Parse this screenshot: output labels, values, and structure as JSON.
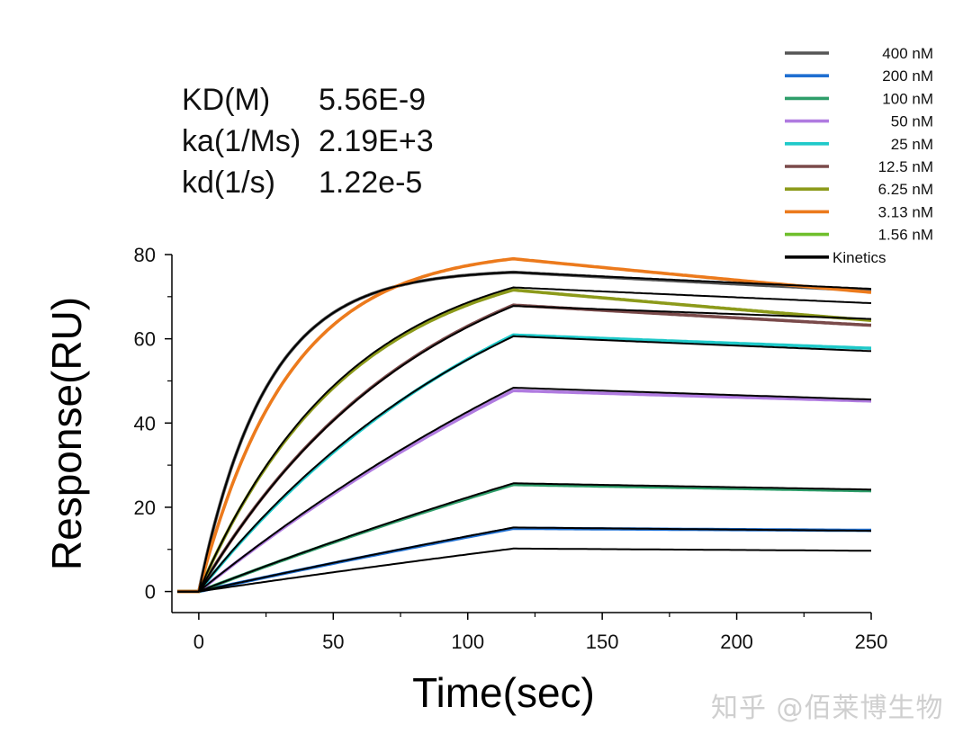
{
  "chart_data": {
    "type": "line",
    "xlabel": "Time(sec)",
    "ylabel": "Response(RU)",
    "xlim": [
      -10,
      250
    ],
    "ylim": [
      -5,
      80
    ],
    "xticks": [
      0,
      50,
      100,
      150,
      200,
      250
    ],
    "yticks": [
      0,
      20,
      40,
      60,
      80
    ],
    "legend_position": "top-right",
    "model": {
      "t_assoc_start": 0,
      "t_dissoc_start": 117
    },
    "series": [
      {
        "name": "400 nM",
        "color": "#555555",
        "rmax": 75.8,
        "kobs": 0.04,
        "koff": 0.00045
      },
      {
        "name": "200 nM",
        "color": "#1f6fd1",
        "rmax": 15.0,
        "kobs": 0.0014,
        "koff": 0.00025
      },
      {
        "name": "100 nM",
        "color": "#2e9e6a",
        "rmax": 25.4,
        "kobs": 0.0022,
        "koff": 0.00045
      },
      {
        "name": "50 nM",
        "color": "#b07be0",
        "rmax": 47.7,
        "kobs": 0.004,
        "koff": 0.0004
      },
      {
        "name": "25 nM",
        "color": "#1fc9c9",
        "rmax": 60.9,
        "kobs": 0.008,
        "koff": 0.0004
      },
      {
        "name": "12.5 nM",
        "color": "#7a4a4a",
        "rmax": 68.0,
        "kobs": 0.012,
        "koff": 0.00055
      },
      {
        "name": "6.25 nM",
        "color": "#8c9a1a",
        "rmax": 71.6,
        "kobs": 0.018,
        "koff": 0.0008
      },
      {
        "name": "3.13 nM",
        "color": "#ec7a1c",
        "rmax": 79.0,
        "kobs": 0.03,
        "koff": 0.0008
      },
      {
        "name": "1.56 nM",
        "color": "#6fbf2c",
        "rmax": 0,
        "kobs": 0,
        "koff": 0
      }
    ],
    "fit_series": {
      "name": "Kinetics",
      "color": "#000000",
      "curves": [
        {
          "rmax": 75.8,
          "kobs": 0.04,
          "koff": 0.0004
        },
        {
          "rmax": 72.2,
          "kobs": 0.018,
          "koff": 0.0004
        },
        {
          "rmax": 67.8,
          "kobs": 0.012,
          "koff": 0.00035
        },
        {
          "rmax": 60.6,
          "kobs": 0.0085,
          "koff": 0.00045
        },
        {
          "rmax": 48.4,
          "kobs": 0.004,
          "koff": 0.00045
        },
        {
          "rmax": 25.7,
          "kobs": 0.0022,
          "koff": 0.00045
        },
        {
          "rmax": 15.2,
          "kobs": 0.0014,
          "koff": 0.0004
        },
        {
          "rmax": 10.2,
          "kobs": 0.0014,
          "koff": 0.0004
        }
      ]
    }
  },
  "stats": [
    {
      "key": "KD(M)",
      "value": "5.56E-9"
    },
    {
      "key": "ka(1/Ms)",
      "value": "2.19E+3"
    },
    {
      "key": "kd(1/s)",
      "value": "1.22e-5"
    }
  ],
  "watermark": "知乎 @佰莱博生物"
}
